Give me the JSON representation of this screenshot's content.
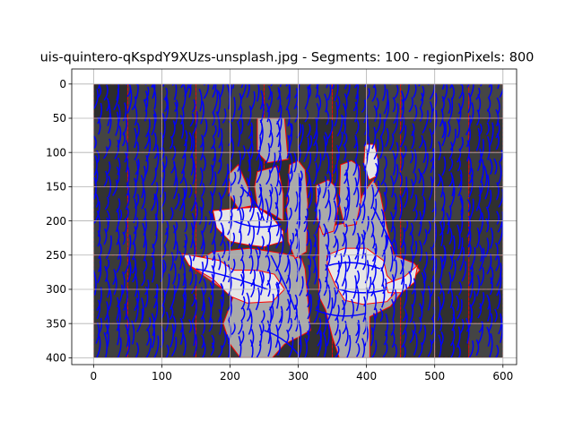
{
  "chart_data": {
    "type": "image-segmentation-overlay",
    "title": "uis-quintero-qKspdY9XUzs-unsplash.jpg - Segments: 100 - regionPixels: 800",
    "xlabel": "",
    "ylabel": "",
    "xlim": [
      -32,
      620
    ],
    "ylim": [
      410,
      -22
    ],
    "y_inverted": true,
    "x_ticks": [
      0,
      100,
      200,
      300,
      400,
      500,
      600
    ],
    "y_ticks": [
      0,
      50,
      100,
      150,
      200,
      250,
      300,
      350,
      400
    ],
    "grid": true,
    "image_extent": {
      "x": [
        0,
        600
      ],
      "y": [
        0,
        400
      ]
    },
    "colors": {
      "boundary": "#ff0000",
      "contour": "#0000ff",
      "background": "#333333",
      "hand": "#aaaaaa",
      "highlight": "#e6e6e6",
      "grid": "#b0b0b0"
    },
    "regions": [
      {
        "tone": "light",
        "points": [
          [
            175,
            185
          ],
          [
            205,
            182
          ],
          [
            240,
            180
          ],
          [
            262,
            195
          ],
          [
            278,
            215
          ],
          [
            278,
            230
          ],
          [
            250,
            238
          ],
          [
            225,
            235
          ],
          [
            200,
            230
          ],
          [
            180,
            210
          ]
        ]
      },
      {
        "tone": "light",
        "points": [
          [
            130,
            248
          ],
          [
            185,
            258
          ],
          [
            205,
            272
          ],
          [
            240,
            272
          ],
          [
            265,
            278
          ],
          [
            280,
            300
          ],
          [
            262,
            318
          ],
          [
            225,
            320
          ],
          [
            200,
            310
          ],
          [
            175,
            285
          ],
          [
            140,
            265
          ]
        ]
      },
      {
        "tone": "light",
        "points": [
          [
            342,
            250
          ],
          [
            368,
            240
          ],
          [
            400,
            240
          ],
          [
            425,
            258
          ],
          [
            430,
            280
          ],
          [
            448,
            298
          ],
          [
            430,
            318
          ],
          [
            395,
            322
          ],
          [
            368,
            316
          ],
          [
            355,
            295
          ],
          [
            343,
            268
          ]
        ]
      },
      {
        "tone": "light",
        "points": [
          [
            398,
            88
          ],
          [
            412,
            88
          ],
          [
            418,
            115
          ],
          [
            414,
            135
          ],
          [
            404,
            140
          ],
          [
            396,
            120
          ]
        ]
      },
      {
        "tone": "light",
        "points": [
          [
            428,
            292
          ],
          [
            455,
            282
          ],
          [
            475,
            265
          ],
          [
            470,
            290
          ],
          [
            452,
            305
          ],
          [
            432,
            305
          ]
        ]
      },
      {
        "tone": "mid",
        "points": [
          [
            140,
            265
          ],
          [
            175,
            245
          ],
          [
            230,
            240
          ],
          [
            280,
            248
          ],
          [
            305,
            255
          ],
          [
            310,
            270
          ],
          [
            318,
            360
          ],
          [
            300,
            370
          ],
          [
            280,
            380
          ],
          [
            262,
            400
          ],
          [
            215,
            400
          ],
          [
            200,
            380
          ],
          [
            190,
            350
          ],
          [
            205,
            310
          ],
          [
            175,
            290
          ],
          [
            150,
            272
          ]
        ]
      },
      {
        "tone": "mid",
        "points": [
          [
            330,
            210
          ],
          [
            360,
            205
          ],
          [
            380,
            200
          ],
          [
            395,
            160
          ],
          [
            410,
            140
          ],
          [
            420,
            160
          ],
          [
            430,
            210
          ],
          [
            440,
            250
          ],
          [
            470,
            262
          ],
          [
            478,
            272
          ],
          [
            455,
            300
          ],
          [
            435,
            325
          ],
          [
            405,
            340
          ],
          [
            405,
            400
          ],
          [
            360,
            400
          ],
          [
            350,
            370
          ],
          [
            340,
            330
          ],
          [
            330,
            310
          ],
          [
            330,
            270
          ]
        ]
      },
      {
        "tone": "mid",
        "points": [
          [
            200,
            130
          ],
          [
            212,
            118
          ],
          [
            228,
            155
          ],
          [
            232,
            178
          ],
          [
            212,
            182
          ],
          [
            198,
            160
          ]
        ]
      },
      {
        "tone": "mid",
        "points": [
          [
            240,
            128
          ],
          [
            270,
            120
          ],
          [
            278,
            160
          ],
          [
            278,
            200
          ],
          [
            262,
            190
          ],
          [
            240,
            180
          ],
          [
            236,
            150
          ]
        ]
      },
      {
        "tone": "mid",
        "points": [
          [
            287,
            118
          ],
          [
            300,
            112
          ],
          [
            310,
            125
          ],
          [
            314,
            175
          ],
          [
            312,
            245
          ],
          [
            295,
            255
          ],
          [
            285,
            230
          ],
          [
            283,
            180
          ]
        ]
      },
      {
        "tone": "mid",
        "points": [
          [
            326,
            148
          ],
          [
            344,
            140
          ],
          [
            355,
            150
          ],
          [
            358,
            185
          ],
          [
            352,
            215
          ],
          [
            336,
            220
          ],
          [
            327,
            195
          ]
        ]
      },
      {
        "tone": "mid",
        "points": [
          [
            362,
            118
          ],
          [
            378,
            112
          ],
          [
            390,
            120
          ],
          [
            392,
            170
          ],
          [
            385,
            205
          ],
          [
            368,
            208
          ],
          [
            360,
            175
          ]
        ]
      },
      {
        "tone": "mid",
        "points": [
          [
            240,
            50
          ],
          [
            280,
            50
          ],
          [
            285,
            110
          ],
          [
            255,
            115
          ],
          [
            240,
            100
          ]
        ]
      }
    ]
  }
}
